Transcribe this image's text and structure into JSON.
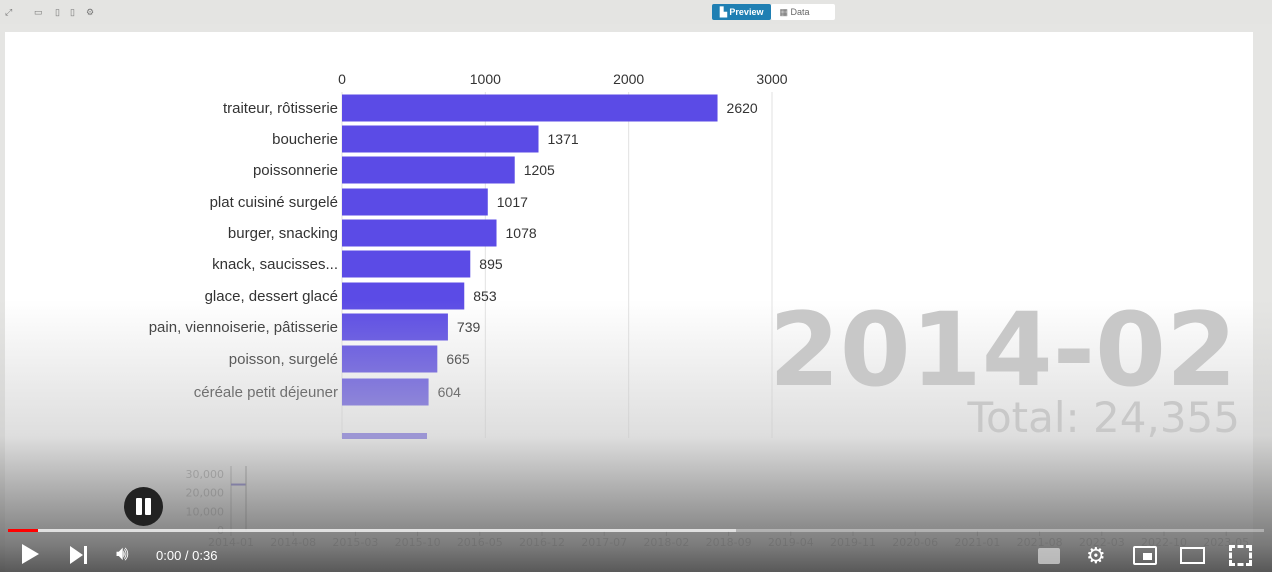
{
  "toolbar": {
    "preview_label": "Preview",
    "data_label": "Data",
    "icons": [
      "expand-icon",
      "desktop-icon",
      "tablet-icon",
      "mobile-icon",
      "gear-icon"
    ]
  },
  "chart_data": {
    "type": "bar",
    "orientation": "horizontal",
    "period": "2014-02",
    "total_label": "Total: 24,355",
    "xticks": [
      "0",
      "1000",
      "2000",
      "3000"
    ],
    "xlim": [
      0,
      3000
    ],
    "bar_color": "#5b4be6",
    "categories": [
      "traiteur, rôtisserie",
      "boucherie",
      "poissonnerie",
      "plat cuisiné surgelé",
      "burger, snacking",
      "knack, saucisses...",
      "glace, dessert glacé",
      "pain, viennoiserie, pâtisserie",
      "poisson, surgelé",
      "céréale petit déjeuner"
    ],
    "values": [
      2620,
      1371,
      1205,
      1017,
      1078,
      895,
      853,
      739,
      665,
      604
    ],
    "value_labels": [
      "2620",
      "1371",
      "1205",
      "1017",
      "1078",
      "895",
      "853",
      "739",
      "665",
      "604"
    ],
    "timeline": {
      "yticks": [
        "30,000",
        "20,000",
        "10,000",
        "0"
      ],
      "yvalues": [
        30000,
        20000,
        10000,
        0
      ],
      "xticks": [
        "2014-01",
        "2014-08",
        "2015-03",
        "2015-10",
        "2016-05",
        "2016-12",
        "2017-07",
        "2018-02",
        "2018-09",
        "2019-04",
        "2019-11",
        "2020-06",
        "2021-01",
        "2021-08",
        "2022-03",
        "2022-10",
        "2023-05"
      ],
      "current_total": 24355
    }
  },
  "player": {
    "time": "0:00 / 0:36",
    "progress": 0.01,
    "buffered": 0.58,
    "accent": "#ff0000"
  }
}
